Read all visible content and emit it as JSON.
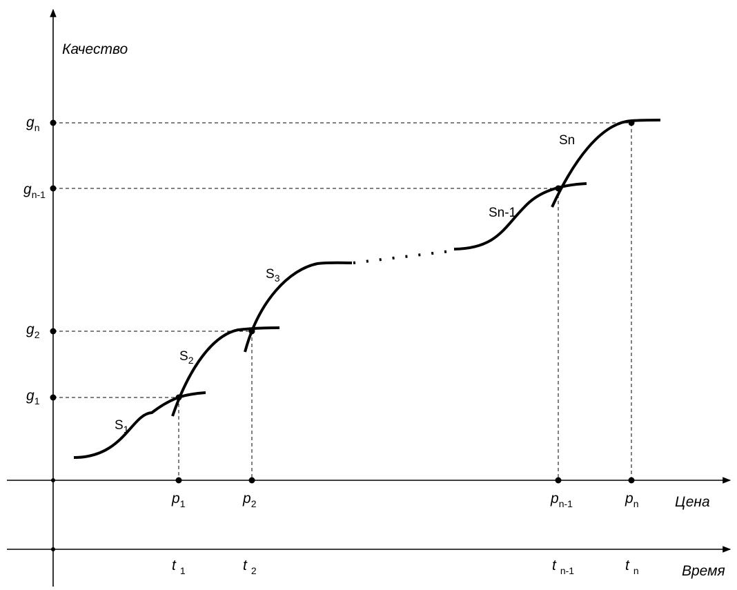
{
  "y_axis": {
    "label": "Качество"
  },
  "price_axis": {
    "label": "Цена"
  },
  "time_axis": {
    "label": "Время"
  },
  "y_ticks": [
    {
      "main": "g",
      "sub": "n"
    },
    {
      "main": "g",
      "sub": "n-1"
    },
    {
      "main": "g",
      "sub": "2"
    },
    {
      "main": "g",
      "sub": "1"
    }
  ],
  "price_ticks": [
    {
      "main": "p",
      "sub": "1"
    },
    {
      "main": "p",
      "sub": "2"
    },
    {
      "main": "p",
      "sub": "n-1"
    },
    {
      "main": "p",
      "sub": "n"
    }
  ],
  "time_ticks": [
    {
      "main": "t",
      "sub": "1"
    },
    {
      "main": "t",
      "sub": "2"
    },
    {
      "main": "t",
      "sub": "n-1"
    },
    {
      "main": "t",
      "sub": "n"
    }
  ],
  "curves": [
    {
      "main": "S",
      "sub": "1"
    },
    {
      "main": "S",
      "sub": "2"
    },
    {
      "main": "S",
      "sub": "3"
    },
    {
      "main": "Sn-1",
      "sub": ""
    },
    {
      "main": "Sn",
      "sub": ""
    }
  ]
}
